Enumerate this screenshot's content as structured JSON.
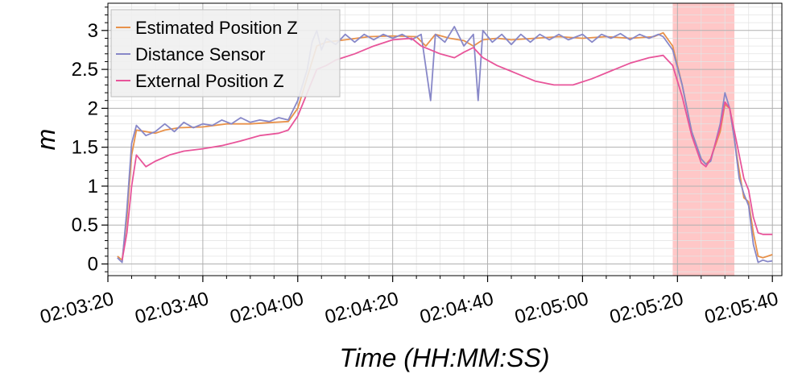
{
  "chart_data": {
    "type": "line",
    "xlabel": "Time (HH:MM:SS)",
    "ylabel": "m",
    "xlim": [
      "02:03:20",
      "02:05:42"
    ],
    "ylim": [
      -0.15,
      3.35
    ],
    "x_ticks": [
      "02:03:20",
      "02:03:40",
      "02:04:00",
      "02:04:20",
      "02:04:40",
      "02:05:00",
      "02:05:20",
      "02:05:40"
    ],
    "y_ticks": [
      "0",
      "0.5",
      "1",
      "1.5",
      "2",
      "2.5",
      "3"
    ],
    "grid": true,
    "legend_position": "top-left",
    "highlight_region": {
      "start": "02:05:19",
      "end": "02:05:32",
      "color": "#ff9999"
    },
    "series": [
      {
        "name": "Estimated Position Z",
        "color": "#e8914a",
        "points": [
          [
            "02:03:22",
            0.1
          ],
          [
            "02:03:23",
            0.05
          ],
          [
            "02:03:24",
            0.6
          ],
          [
            "02:03:25",
            1.4
          ],
          [
            "02:03:26",
            1.72
          ],
          [
            "02:03:28",
            1.7
          ],
          [
            "02:03:30",
            1.68
          ],
          [
            "02:03:32",
            1.72
          ],
          [
            "02:03:35",
            1.75
          ],
          [
            "02:03:40",
            1.76
          ],
          [
            "02:03:45",
            1.8
          ],
          [
            "02:03:50",
            1.8
          ],
          [
            "02:03:55",
            1.82
          ],
          [
            "02:03:58",
            1.83
          ],
          [
            "02:04:00",
            2.0
          ],
          [
            "02:04:02",
            2.4
          ],
          [
            "02:04:04",
            2.8
          ],
          [
            "02:04:06",
            2.85
          ],
          [
            "02:04:10",
            2.88
          ],
          [
            "02:04:15",
            2.92
          ],
          [
            "02:04:20",
            2.93
          ],
          [
            "02:04:25",
            2.92
          ],
          [
            "02:04:27",
            2.8
          ],
          [
            "02:04:29",
            2.95
          ],
          [
            "02:04:32",
            2.9
          ],
          [
            "02:04:35",
            2.87
          ],
          [
            "02:04:37",
            2.8
          ],
          [
            "02:04:39",
            2.88
          ],
          [
            "02:04:42",
            2.9
          ],
          [
            "02:04:45",
            2.88
          ],
          [
            "02:04:50",
            2.9
          ],
          [
            "02:04:55",
            2.92
          ],
          [
            "02:05:00",
            2.9
          ],
          [
            "02:05:05",
            2.92
          ],
          [
            "02:05:10",
            2.9
          ],
          [
            "02:05:15",
            2.92
          ],
          [
            "02:05:17",
            2.97
          ],
          [
            "02:05:19",
            2.8
          ],
          [
            "02:05:21",
            2.3
          ],
          [
            "02:05:23",
            1.7
          ],
          [
            "02:05:25",
            1.35
          ],
          [
            "02:05:26",
            1.28
          ],
          [
            "02:05:27",
            1.35
          ],
          [
            "02:05:29",
            1.7
          ],
          [
            "02:05:30",
            2.05
          ],
          [
            "02:05:31",
            2.0
          ],
          [
            "02:05:33",
            1.2
          ],
          [
            "02:05:34",
            0.85
          ],
          [
            "02:05:35",
            0.8
          ],
          [
            "02:05:36",
            0.4
          ],
          [
            "02:05:37",
            0.1
          ],
          [
            "02:05:38",
            0.08
          ],
          [
            "02:05:39",
            0.1
          ],
          [
            "02:05:40",
            0.12
          ]
        ]
      },
      {
        "name": "Distance Sensor",
        "color": "#8888c8",
        "points": [
          [
            "02:03:22",
            0.08
          ],
          [
            "02:03:23",
            0.02
          ],
          [
            "02:03:24",
            0.7
          ],
          [
            "02:03:25",
            1.55
          ],
          [
            "02:03:26",
            1.78
          ],
          [
            "02:03:28",
            1.65
          ],
          [
            "02:03:30",
            1.7
          ],
          [
            "02:03:32",
            1.8
          ],
          [
            "02:03:34",
            1.7
          ],
          [
            "02:03:36",
            1.82
          ],
          [
            "02:03:38",
            1.75
          ],
          [
            "02:03:40",
            1.8
          ],
          [
            "02:03:42",
            1.78
          ],
          [
            "02:03:44",
            1.85
          ],
          [
            "02:03:46",
            1.8
          ],
          [
            "02:03:48",
            1.88
          ],
          [
            "02:03:50",
            1.82
          ],
          [
            "02:03:52",
            1.85
          ],
          [
            "02:03:54",
            1.83
          ],
          [
            "02:03:56",
            1.88
          ],
          [
            "02:03:58",
            1.85
          ],
          [
            "02:04:00",
            2.1
          ],
          [
            "02:04:02",
            2.5
          ],
          [
            "02:04:03",
            2.85
          ],
          [
            "02:04:04",
            3.0
          ],
          [
            "02:04:05",
            2.75
          ],
          [
            "02:04:06",
            2.9
          ],
          [
            "02:04:08",
            2.82
          ],
          [
            "02:04:10",
            2.95
          ],
          [
            "02:04:12",
            2.85
          ],
          [
            "02:04:14",
            2.95
          ],
          [
            "02:04:16",
            2.88
          ],
          [
            "02:04:18",
            2.95
          ],
          [
            "02:04:20",
            2.9
          ],
          [
            "02:04:22",
            2.95
          ],
          [
            "02:04:24",
            2.88
          ],
          [
            "02:04:26",
            2.95
          ],
          [
            "02:04:28",
            2.1
          ],
          [
            "02:04:29",
            2.95
          ],
          [
            "02:04:31",
            2.85
          ],
          [
            "02:04:33",
            3.05
          ],
          [
            "02:04:35",
            2.8
          ],
          [
            "02:04:37",
            2.95
          ],
          [
            "02:04:38",
            2.1
          ],
          [
            "02:04:39",
            3.0
          ],
          [
            "02:04:41",
            2.85
          ],
          [
            "02:04:43",
            2.95
          ],
          [
            "02:04:45",
            2.82
          ],
          [
            "02:04:47",
            2.95
          ],
          [
            "02:04:49",
            2.85
          ],
          [
            "02:04:51",
            2.95
          ],
          [
            "02:04:53",
            2.88
          ],
          [
            "02:04:55",
            2.95
          ],
          [
            "02:04:57",
            2.88
          ],
          [
            "02:05:00",
            2.95
          ],
          [
            "02:05:02",
            2.85
          ],
          [
            "02:05:04",
            2.95
          ],
          [
            "02:05:06",
            2.9
          ],
          [
            "02:05:08",
            2.96
          ],
          [
            "02:05:10",
            2.88
          ],
          [
            "02:05:12",
            2.95
          ],
          [
            "02:05:14",
            2.9
          ],
          [
            "02:05:16",
            2.95
          ],
          [
            "02:05:17",
            2.92
          ],
          [
            "02:05:19",
            2.75
          ],
          [
            "02:05:21",
            2.3
          ],
          [
            "02:05:23",
            1.7
          ],
          [
            "02:05:25",
            1.35
          ],
          [
            "02:05:26",
            1.28
          ],
          [
            "02:05:27",
            1.32
          ],
          [
            "02:05:29",
            1.8
          ],
          [
            "02:05:30",
            2.2
          ],
          [
            "02:05:31",
            2.0
          ],
          [
            "02:05:32",
            1.6
          ],
          [
            "02:05:33",
            1.1
          ],
          [
            "02:05:34",
            0.9
          ],
          [
            "02:05:35",
            0.75
          ],
          [
            "02:05:36",
            0.25
          ],
          [
            "02:05:37",
            0.02
          ],
          [
            "02:05:38",
            0.05
          ],
          [
            "02:05:39",
            0.03
          ],
          [
            "02:05:40",
            0.04
          ]
        ]
      },
      {
        "name": "External Position Z",
        "color": "#e8559a",
        "points": [
          [
            "02:03:23",
            0.05
          ],
          [
            "02:03:24",
            0.4
          ],
          [
            "02:03:25",
            1.0
          ],
          [
            "02:03:26",
            1.4
          ],
          [
            "02:03:28",
            1.25
          ],
          [
            "02:03:30",
            1.32
          ],
          [
            "02:03:33",
            1.4
          ],
          [
            "02:03:36",
            1.45
          ],
          [
            "02:03:40",
            1.48
          ],
          [
            "02:03:44",
            1.52
          ],
          [
            "02:03:48",
            1.58
          ],
          [
            "02:03:52",
            1.65
          ],
          [
            "02:03:56",
            1.68
          ],
          [
            "02:03:58",
            1.72
          ],
          [
            "02:04:00",
            1.9
          ],
          [
            "02:04:02",
            2.2
          ],
          [
            "02:04:04",
            2.5
          ],
          [
            "02:04:06",
            2.55
          ],
          [
            "02:04:08",
            2.62
          ],
          [
            "02:04:12",
            2.7
          ],
          [
            "02:04:16",
            2.8
          ],
          [
            "02:04:20",
            2.88
          ],
          [
            "02:04:24",
            2.9
          ],
          [
            "02:04:26",
            2.8
          ],
          [
            "02:04:28",
            2.75
          ],
          [
            "02:04:30",
            2.7
          ],
          [
            "02:04:33",
            2.65
          ],
          [
            "02:04:35",
            2.72
          ],
          [
            "02:04:37",
            2.78
          ],
          [
            "02:04:39",
            2.65
          ],
          [
            "02:04:42",
            2.55
          ],
          [
            "02:04:46",
            2.45
          ],
          [
            "02:04:50",
            2.35
          ],
          [
            "02:04:54",
            2.3
          ],
          [
            "02:04:58",
            2.3
          ],
          [
            "02:05:02",
            2.38
          ],
          [
            "02:05:06",
            2.48
          ],
          [
            "02:05:10",
            2.58
          ],
          [
            "02:05:14",
            2.65
          ],
          [
            "02:05:17",
            2.68
          ],
          [
            "02:05:19",
            2.55
          ],
          [
            "02:05:21",
            2.15
          ],
          [
            "02:05:23",
            1.65
          ],
          [
            "02:05:25",
            1.3
          ],
          [
            "02:05:26",
            1.25
          ],
          [
            "02:05:27",
            1.35
          ],
          [
            "02:05:29",
            1.75
          ],
          [
            "02:05:30",
            2.08
          ],
          [
            "02:05:31",
            2.0
          ],
          [
            "02:05:33",
            1.4
          ],
          [
            "02:05:34",
            1.1
          ],
          [
            "02:05:35",
            0.95
          ],
          [
            "02:05:36",
            0.6
          ],
          [
            "02:05:37",
            0.4
          ],
          [
            "02:05:38",
            0.38
          ],
          [
            "02:05:40",
            0.38
          ]
        ]
      }
    ]
  }
}
